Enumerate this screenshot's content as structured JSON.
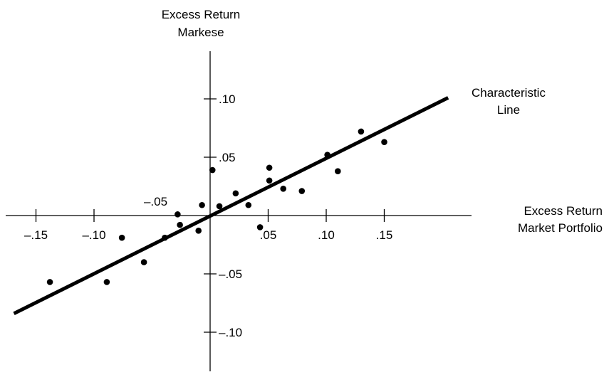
{
  "chart_data": {
    "type": "scatter",
    "title": "",
    "ylabel_lines": [
      "Excess Return",
      "Markese"
    ],
    "xlabel_lines": [
      "Excess Return",
      "Market Portfolio"
    ],
    "x_ticks": [
      {
        "value": -0.15,
        "label": "–.15"
      },
      {
        "value": -0.1,
        "label": "–.10"
      },
      {
        "value": 0.05,
        "label": ".05"
      },
      {
        "value": 0.1,
        "label": ".10"
      },
      {
        "value": 0.15,
        "label": ".15"
      }
    ],
    "y_ticks": [
      {
        "value": 0.1,
        "label": ".10"
      },
      {
        "value": 0.05,
        "label": ".05"
      },
      {
        "value": -0.05,
        "label": "–.05"
      },
      {
        "value": -0.1,
        "label": "–.10"
      }
    ],
    "extra_x_label": {
      "value": -0.05,
      "label": "–.05"
    },
    "xlim": [
      -0.17,
      0.22
    ],
    "ylim": [
      -0.125,
      0.155
    ],
    "points": [
      {
        "x": -0.138,
        "y": -0.057
      },
      {
        "x": -0.089,
        "y": -0.057
      },
      {
        "x": -0.076,
        "y": -0.019
      },
      {
        "x": -0.057,
        "y": -0.04
      },
      {
        "x": -0.039,
        "y": -0.019
      },
      {
        "x": -0.028,
        "y": 0.001
      },
      {
        "x": -0.026,
        "y": -0.008
      },
      {
        "x": -0.01,
        "y": -0.013
      },
      {
        "x": -0.007,
        "y": 0.009
      },
      {
        "x": 0.002,
        "y": 0.039
      },
      {
        "x": 0.008,
        "y": 0.008
      },
      {
        "x": 0.022,
        "y": 0.019
      },
      {
        "x": 0.033,
        "y": 0.009
      },
      {
        "x": 0.043,
        "y": -0.01
      },
      {
        "x": 0.051,
        "y": 0.041
      },
      {
        "x": 0.051,
        "y": 0.03
      },
      {
        "x": 0.063,
        "y": 0.023
      },
      {
        "x": 0.079,
        "y": 0.021
      },
      {
        "x": 0.101,
        "y": 0.052
      },
      {
        "x": 0.11,
        "y": 0.038
      },
      {
        "x": 0.13,
        "y": 0.072
      },
      {
        "x": 0.15,
        "y": 0.063
      }
    ],
    "line": {
      "label_lines": [
        "Characteristic",
        "Line"
      ],
      "x0": -0.169,
      "y0": -0.084,
      "x1": 0.205,
      "y1": 0.101
    }
  }
}
